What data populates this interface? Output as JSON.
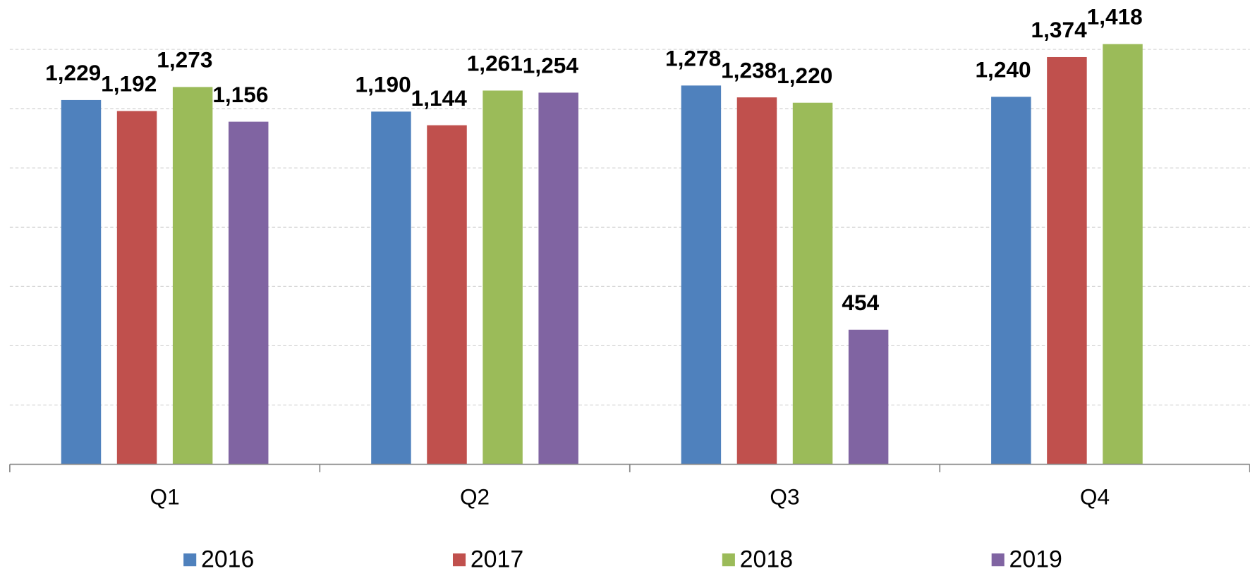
{
  "chart_data": {
    "type": "bar",
    "categories": [
      "Q1",
      "Q2",
      "Q3",
      "Q4"
    ],
    "series": [
      {
        "name": "2016",
        "color": "#4f81bd",
        "values": [
          1229,
          1190,
          1278,
          1240
        ],
        "value_labels": [
          "1,229",
          "1,190",
          "1,278",
          "1,240"
        ]
      },
      {
        "name": "2017",
        "color": "#c0504d",
        "values": [
          1192,
          1144,
          1238,
          1374
        ],
        "value_labels": [
          "1,192",
          "1,144",
          "1,238",
          "1,374"
        ]
      },
      {
        "name": "2018",
        "color": "#9bbb59",
        "values": [
          1273,
          1261,
          1220,
          1418
        ],
        "value_labels": [
          "1,273",
          "1,261",
          "1,220",
          "1,418"
        ]
      },
      {
        "name": "2019",
        "color": "#8064a2",
        "values": [
          1156,
          1254,
          454,
          null
        ],
        "value_labels": [
          "1,156",
          "1,254",
          "454",
          null
        ]
      }
    ],
    "ylim": [
      0,
      1400
    ],
    "yticks": [
      0,
      200,
      400,
      600,
      800,
      1000,
      1200,
      1400
    ],
    "grid": true,
    "legend": "bottom"
  }
}
